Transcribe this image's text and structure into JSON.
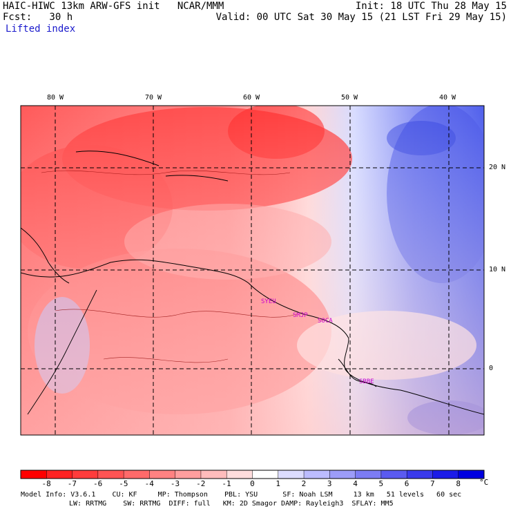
{
  "header": {
    "title_left": "HAIC-HIWC 13km ARW-GFS init   NCAR/MMM",
    "init": "Init: 18 UTC Thu 28 May 15",
    "fcst": "Fcst:   30 h",
    "valid": "Valid: 00 UTC Sat 30 May 15 (21 LST Fri 29 May 15)",
    "field": "Lifted index"
  },
  "map": {
    "lon_labels": [
      "80 W",
      "70 W",
      "60 W",
      "50 W",
      "40 W"
    ],
    "lat_labels": [
      "20 N",
      "10 N",
      "0"
    ],
    "stations": [
      "SYEU",
      "SMJP",
      "SOCA",
      "SBBE"
    ],
    "colors": {
      "station": "#cc00cc",
      "grid": "#000000",
      "coast": "#000000"
    }
  },
  "colorbar": {
    "ticks": [
      "-8",
      "-7",
      "-6",
      "-5",
      "-4",
      "-3",
      "-2",
      "-1",
      "0",
      "1",
      "2",
      "3",
      "4",
      "5",
      "6",
      "7",
      "8"
    ],
    "unit": "°C",
    "colors": [
      "#ff0000",
      "#ff2222",
      "#ff3c3c",
      "#ff5454",
      "#ff6a6a",
      "#ff8282",
      "#ff9e9e",
      "#ffbcbc",
      "#ffdddd",
      "#ffffff",
      "#dcdcff",
      "#bcbcff",
      "#9c9cf8",
      "#7c7cf4",
      "#5a5af0",
      "#3a3aec",
      "#1c1ce8",
      "#0000e0"
    ]
  },
  "footer": {
    "line1": "Model Info: V3.6.1    CU: KF     MP: Thompson    PBL: YSU      SF: Noah LSM     13 km   51 levels   60 sec",
    "line2": "LW: RRTMG    SW: RRTMG  DIFF: full   KM: 2D Smagor DAMP: Rayleigh3  SFLAY: MM5"
  }
}
